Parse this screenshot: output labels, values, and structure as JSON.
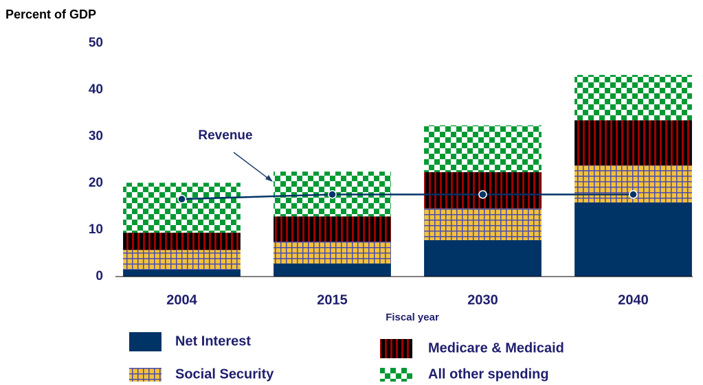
{
  "chart_data": {
    "type": "bar",
    "stacked": true,
    "y_label": "Percent of GDP",
    "x_label": "Fiscal year",
    "categories": [
      "2004",
      "2015",
      "2030",
      "2040"
    ],
    "series": [
      {
        "name": "Net Interest",
        "color": "#003366",
        "values": [
          1.5,
          2.8,
          7.8,
          15.9
        ]
      },
      {
        "name": "Social Security",
        "color": "#f2c23a",
        "values": [
          4.2,
          4.7,
          6.8,
          7.9
        ]
      },
      {
        "name": "Medicare & Medicaid",
        "color": "#a00000",
        "values": [
          3.7,
          5.4,
          7.8,
          9.7
        ]
      },
      {
        "name": "All other spending",
        "color": "#009933",
        "values": [
          10.7,
          9.6,
          10.0,
          9.7
        ]
      }
    ],
    "line": {
      "name": "Revenue",
      "color": "#003366",
      "values": [
        16.6,
        17.6,
        17.6,
        17.6
      ]
    },
    "ylim": [
      0,
      50
    ],
    "yticks": [
      0,
      10,
      20,
      30,
      40,
      50
    ]
  }
}
